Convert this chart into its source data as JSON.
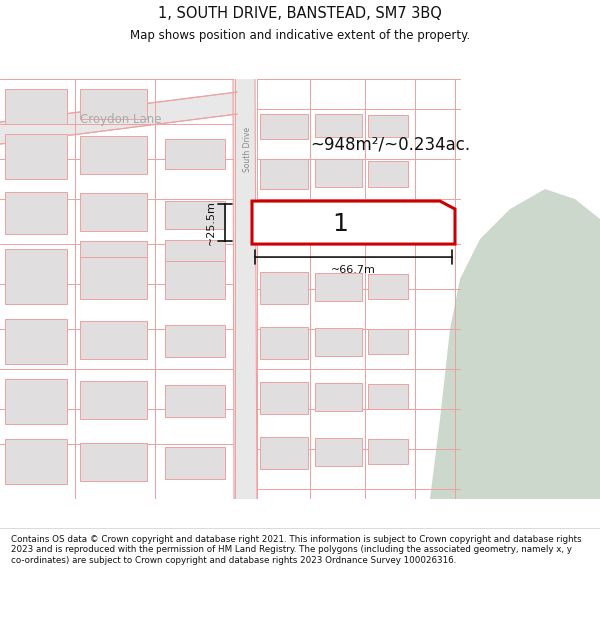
{
  "title": "1, SOUTH DRIVE, BANSTEAD, SM7 3BQ",
  "subtitle": "Map shows position and indicative extent of the property.",
  "footer": "Contains OS data © Crown copyright and database right 2021. This information is subject to Crown copyright and database rights 2023 and is reproduced with the permission of HM Land Registry. The polygons (including the associated geometry, namely x, y co-ordinates) are subject to Crown copyright and database rights 2023 Ordnance Survey 100026316.",
  "bg_color": "#ffffff",
  "building_color": "#e0dede",
  "outline_color": "#f0a0a0",
  "green_color": "#ccd8cc",
  "highlight_color": "#cc0000",
  "area_label": "~948m²/~0.234ac.",
  "width_label": "~66.7m",
  "height_label": "~25.5m",
  "property_number": "1",
  "croydon_lane_label": "Croydon Lane",
  "south_drive_label": "South Drive",
  "road_color": "#e8e8e8",
  "map_bg": "#f7f5f2"
}
